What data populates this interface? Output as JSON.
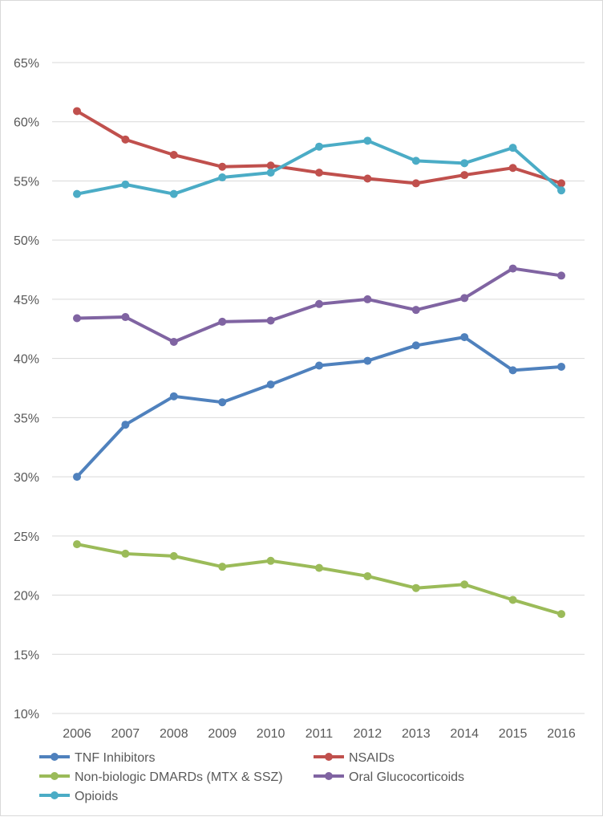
{
  "chart_data": {
    "type": "line",
    "title": "",
    "xlabel": "",
    "ylabel": "",
    "x": [
      "2006",
      "2007",
      "2008",
      "2009",
      "2010",
      "2011",
      "2012",
      "2013",
      "2014",
      "2015",
      "2016"
    ],
    "ylim": [
      10,
      65
    ],
    "y_ticks": [
      10,
      15,
      20,
      25,
      30,
      35,
      40,
      45,
      50,
      55,
      60,
      65
    ],
    "y_tick_labels": [
      "10%",
      "15%",
      "20%",
      "25%",
      "30%",
      "35%",
      "40%",
      "45%",
      "50%",
      "55%",
      "60%",
      "65%"
    ],
    "y_unit": "%",
    "grid": true,
    "legend_position": "bottom",
    "series": [
      {
        "name": "TNF Inhibitors",
        "color": "#4f81bd",
        "values": [
          30.0,
          34.4,
          36.8,
          36.3,
          37.8,
          39.4,
          39.8,
          41.1,
          41.8,
          39.0,
          39.3
        ]
      },
      {
        "name": "NSAIDs",
        "color": "#c0504d",
        "values": [
          60.9,
          58.5,
          57.2,
          56.2,
          56.3,
          55.7,
          55.2,
          54.8,
          55.5,
          56.1,
          54.8
        ]
      },
      {
        "name": "Non-biologic DMARDs (MTX & SSZ)",
        "color": "#9bbb59",
        "values": [
          24.3,
          23.5,
          23.3,
          22.4,
          22.9,
          22.3,
          21.6,
          20.6,
          20.9,
          19.6,
          18.4
        ]
      },
      {
        "name": "Oral Glucocorticoids",
        "color": "#8064a2",
        "values": [
          43.4,
          43.5,
          41.4,
          43.1,
          43.2,
          44.6,
          45.0,
          44.1,
          45.1,
          47.6,
          47.0
        ]
      },
      {
        "name": "Opioids",
        "color": "#4bacc6",
        "values": [
          53.9,
          54.7,
          53.9,
          55.3,
          55.7,
          57.9,
          58.4,
          56.7,
          56.5,
          57.8,
          54.2
        ]
      }
    ]
  }
}
